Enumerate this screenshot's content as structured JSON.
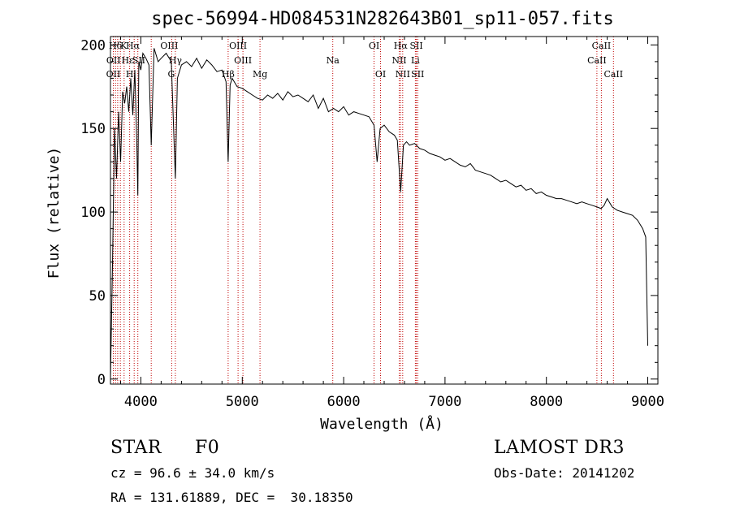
{
  "chart_data": {
    "type": "line",
    "title": "spec-56994-HD084531N282643B01_sp11-057.fits",
    "xlabel": "Wavelength (Å)",
    "ylabel": "Flux (relative)",
    "xlim": [
      3700,
      9100
    ],
    "ylim": [
      -3,
      205
    ],
    "xticks": [
      4000,
      5000,
      6000,
      7000,
      8000,
      9000
    ],
    "yticks": [
      0,
      50,
      100,
      150,
      200
    ],
    "grid": false,
    "series": [
      {
        "name": "spectrum",
        "x": [
          3700,
          3720,
          3740,
          3760,
          3780,
          3800,
          3820,
          3840,
          3860,
          3880,
          3900,
          3920,
          3940,
          3960,
          3970,
          3980,
          4000,
          4020,
          4050,
          4080,
          4102,
          4130,
          4170,
          4200,
          4250,
          4300,
          4340,
          4360,
          4400,
          4450,
          4500,
          4550,
          4600,
          4650,
          4700,
          4750,
          4800,
          4840,
          4861,
          4880,
          4900,
          4950,
          5000,
          5050,
          5100,
          5150,
          5200,
          5250,
          5300,
          5350,
          5400,
          5450,
          5500,
          5550,
          5600,
          5650,
          5700,
          5750,
          5800,
          5850,
          5900,
          5950,
          6000,
          6050,
          6100,
          6150,
          6200,
          6250,
          6300,
          6330,
          6360,
          6400,
          6450,
          6500,
          6530,
          6563,
          6590,
          6620,
          6650,
          6700,
          6750,
          6800,
          6850,
          6900,
          6950,
          7000,
          7050,
          7100,
          7150,
          7200,
          7250,
          7300,
          7350,
          7400,
          7450,
          7500,
          7550,
          7600,
          7650,
          7700,
          7750,
          7800,
          7850,
          7900,
          7950,
          8000,
          8050,
          8100,
          8150,
          8200,
          8250,
          8300,
          8350,
          8400,
          8450,
          8500,
          8540,
          8570,
          8600,
          8650,
          8700,
          8750,
          8800,
          8850,
          8900,
          8950,
          8980,
          9000
        ],
        "y": [
          0,
          68,
          150,
          120,
          160,
          130,
          172,
          165,
          175,
          160,
          180,
          158,
          185,
          140,
          110,
          190,
          185,
          195,
          192,
          188,
          140,
          198,
          190,
          192,
          195,
          190,
          120,
          180,
          188,
          190,
          187,
          192,
          186,
          191,
          188,
          184,
          185,
          178,
          130,
          176,
          180,
          175,
          174,
          172,
          170,
          168,
          167,
          170,
          168,
          171,
          167,
          172,
          169,
          170,
          168,
          166,
          170,
          162,
          168,
          160,
          162,
          160,
          163,
          158,
          160,
          159,
          158,
          157,
          152,
          130,
          150,
          152,
          148,
          146,
          143,
          112,
          140,
          142,
          140,
          141,
          138,
          137,
          135,
          134,
          133,
          131,
          132,
          130,
          128,
          127,
          129,
          125,
          124,
          123,
          122,
          120,
          118,
          119,
          117,
          115,
          116,
          113,
          114,
          111,
          112,
          110,
          109,
          108,
          108,
          107,
          106,
          105,
          106,
          105,
          104,
          103,
          102,
          104,
          108,
          103,
          101,
          100,
          99,
          98,
          95,
          90,
          85,
          20
        ]
      }
    ],
    "annotations": [
      {
        "label": "Hδ",
        "x": 3750,
        "row": 1
      },
      {
        "label": "K",
        "x": 3830,
        "row": 1
      },
      {
        "label": "Hα",
        "x": 3920,
        "row": 1
      },
      {
        "label": "OIII",
        "x": 4280,
        "row": 1
      },
      {
        "label": "OII",
        "x": 3730,
        "row": 2
      },
      {
        "label": "Hε",
        "x": 3870,
        "row": 2
      },
      {
        "label": "SII",
        "x": 3980,
        "row": 2
      },
      {
        "label": "Hγ",
        "x": 4340,
        "row": 2
      },
      {
        "label": "OII",
        "x": 3728,
        "row": 3
      },
      {
        "label": "H",
        "x": 3890,
        "row": 3
      },
      {
        "label": "G",
        "x": 4300,
        "row": 3
      },
      {
        "label": "Hβ",
        "x": 4861,
        "row": 3
      },
      {
        "label": "OIII",
        "x": 4959,
        "row": 1
      },
      {
        "label": "OIII",
        "x": 5007,
        "row": 2
      },
      {
        "label": "Mg",
        "x": 5175,
        "row": 3
      },
      {
        "label": "Na",
        "x": 5893,
        "row": 2
      },
      {
        "label": "OI",
        "x": 6300,
        "row": 1
      },
      {
        "label": "OI",
        "x": 6364,
        "row": 3
      },
      {
        "label": "Hα",
        "x": 6563,
        "row": 1
      },
      {
        "label": "NII",
        "x": 6548,
        "row": 2
      },
      {
        "label": "NII",
        "x": 6583,
        "row": 3
      },
      {
        "label": "SII",
        "x": 6717,
        "row": 1
      },
      {
        "label": "Li",
        "x": 6708,
        "row": 2
      },
      {
        "label": "SII",
        "x": 6731,
        "row": 3
      },
      {
        "label": "CaII",
        "x": 8542,
        "row": 1
      },
      {
        "label": "CaII",
        "x": 8498,
        "row": 2
      },
      {
        "label": "CaII",
        "x": 8662,
        "row": 3
      }
    ],
    "line_markers": [
      3728,
      3750,
      3771,
      3798,
      3835,
      3889,
      3934,
      3970,
      4102,
      4304,
      4340,
      4861,
      4959,
      5007,
      5175,
      5893,
      6300,
      6364,
      6548,
      6563,
      6583,
      6708,
      6717,
      6731,
      8498,
      8542,
      8662
    ]
  },
  "info": {
    "object_class": "STAR",
    "subclass": "F0",
    "survey": "LAMOST DR3",
    "cz": "cz = 96.6 ± 34.0 km/s",
    "obs_date": "Obs-Date: 20141202",
    "coords": "RA = 131.61889, DEC =  30.18350"
  }
}
